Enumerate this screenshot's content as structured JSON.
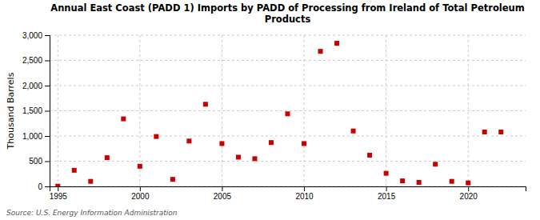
{
  "chart_data": {
    "type": "scatter",
    "title": "Annual East Coast (PADD 1) Imports by PADD of Processing from Ireland of Total Petroleum\nProducts",
    "ylabel": "Thousand Barrels",
    "annotations": [
      "Source: U.S. Energy Information Administration"
    ],
    "color": "#cc0000",
    "marker": "square",
    "grid": true,
    "xlim": [
      1994.5,
      2023.5
    ],
    "xticks": [
      1995,
      2000,
      2005,
      2010,
      2015,
      2020
    ],
    "ylim": [
      0,
      3000
    ],
    "yticks": [
      0,
      500,
      {
        "value": 1000,
        "label": "1,000"
      },
      {
        "value": 1500,
        "label": "1,500"
      },
      {
        "value": 2000,
        "label": "2,000"
      },
      {
        "value": 2500,
        "label": "2,500"
      },
      {
        "value": 3000,
        "label": "3,000"
      }
    ],
    "x": [
      1995,
      1996,
      1997,
      1998,
      1999,
      2000,
      2001,
      2002,
      2003,
      2004,
      2005,
      2006,
      2007,
      2008,
      2009,
      2010,
      2011,
      2012,
      2013,
      2014,
      2015,
      2016,
      2017,
      2018,
      2019,
      2020,
      2021,
      2022
    ],
    "values": [
      5,
      320,
      100,
      570,
      1340,
      400,
      990,
      140,
      900,
      1630,
      850,
      580,
      550,
      870,
      1440,
      850,
      2680,
      2840,
      1100,
      620,
      260,
      110,
      80,
      440,
      100,
      70,
      1080,
      1080
    ]
  }
}
